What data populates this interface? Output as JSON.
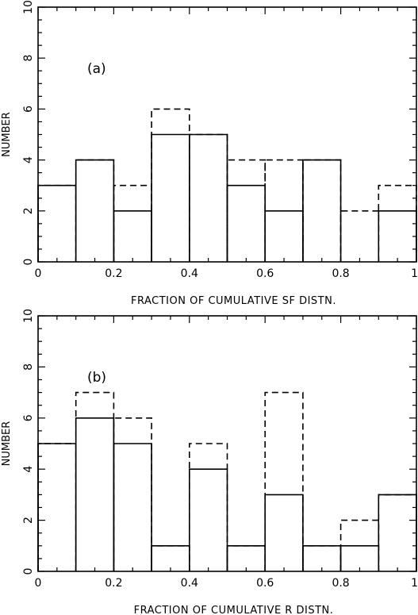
{
  "chart_data": [
    {
      "type": "bar",
      "panel_label": "(a)",
      "xlabel": "FRACTION OF CUMULATIVE SF DISTN.",
      "ylabel": "NUMBER",
      "xlim": [
        0,
        1
      ],
      "ylim": [
        0,
        10
      ],
      "xticks": [
        "0",
        "0.2",
        "0.4",
        "0.6",
        "0.8",
        "1"
      ],
      "yticks": [
        "0",
        "2",
        "4",
        "6",
        "8",
        "10"
      ],
      "bin_edges": [
        0,
        0.1,
        0.2,
        0.3,
        0.4,
        0.5,
        0.6,
        0.7,
        0.8,
        0.9,
        1.0
      ],
      "series": [
        {
          "style": "solid",
          "values": [
            3,
            4,
            2,
            5,
            5,
            3,
            2,
            4,
            0,
            2
          ]
        },
        {
          "style": "dashed",
          "values": [
            3,
            4,
            3,
            6,
            5,
            4,
            4,
            4,
            2,
            3
          ]
        }
      ]
    },
    {
      "type": "bar",
      "panel_label": "(b)",
      "xlabel": "FRACTION OF CUMULATIVE R DISTN.",
      "ylabel": "NUMBER",
      "xlim": [
        0,
        1
      ],
      "ylim": [
        0,
        10
      ],
      "xticks": [
        "0",
        "0.2",
        "0.4",
        "0.6",
        "0.8",
        "1"
      ],
      "yticks": [
        "0",
        "2",
        "4",
        "6",
        "8",
        "10"
      ],
      "bin_edges": [
        0,
        0.1,
        0.2,
        0.3,
        0.4,
        0.5,
        0.6,
        0.7,
        0.8,
        0.9,
        1.0
      ],
      "series": [
        {
          "style": "solid",
          "values": [
            5,
            6,
            5,
            1,
            4,
            1,
            3,
            1,
            1,
            3
          ]
        },
        {
          "style": "dashed",
          "values": [
            5,
            7,
            6,
            1,
            5,
            1,
            7,
            1,
            2,
            3
          ]
        }
      ]
    }
  ]
}
